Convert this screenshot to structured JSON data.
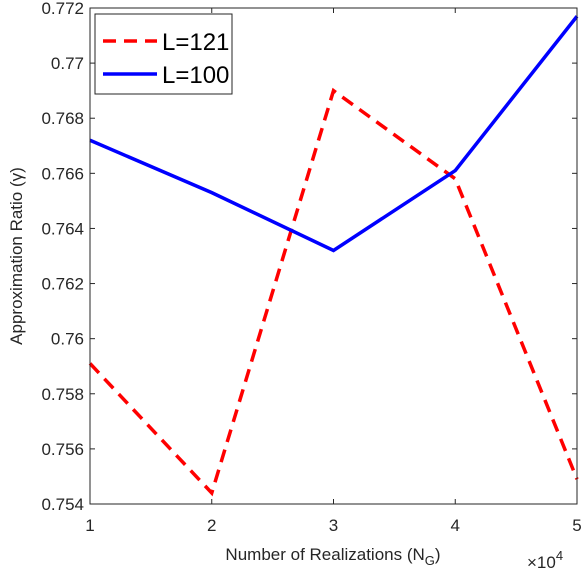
{
  "chart_data": {
    "type": "line",
    "x": [
      1,
      2,
      3,
      4,
      5
    ],
    "x_ticks": [
      1,
      2,
      3,
      4,
      5
    ],
    "x_tick_labels": [
      "1",
      "2",
      "3",
      "4",
      "5"
    ],
    "x_multiplier": "×10",
    "x_multiplier_exponent": "4",
    "xlim": [
      1,
      5
    ],
    "ylim": [
      0.754,
      0.772
    ],
    "y_ticks": [
      0.754,
      0.756,
      0.758,
      0.76,
      0.762,
      0.764,
      0.766,
      0.768,
      0.77,
      0.772
    ],
    "y_tick_labels": [
      "0.754",
      "0.756",
      "0.758",
      "0.76",
      "0.762",
      "0.764",
      "0.766",
      "0.768",
      "0.77",
      "0.772"
    ],
    "xlabel": "Number of Realizations (N",
    "xlabel_subscript": "G",
    "xlabel_suffix": ")",
    "ylabel": "Approximation Ratio (γ)",
    "grid": false,
    "legend_position": "top-left",
    "series": [
      {
        "name": "L=121",
        "color": "#ff0000",
        "style": "dashed",
        "values": [
          0.7591,
          0.7544,
          0.769,
          0.7658,
          0.7549
        ]
      },
      {
        "name": "L=100",
        "color": "#0000ff",
        "style": "solid",
        "values": [
          0.7672,
          0.7653,
          0.7632,
          0.7661,
          0.7717
        ]
      }
    ]
  }
}
